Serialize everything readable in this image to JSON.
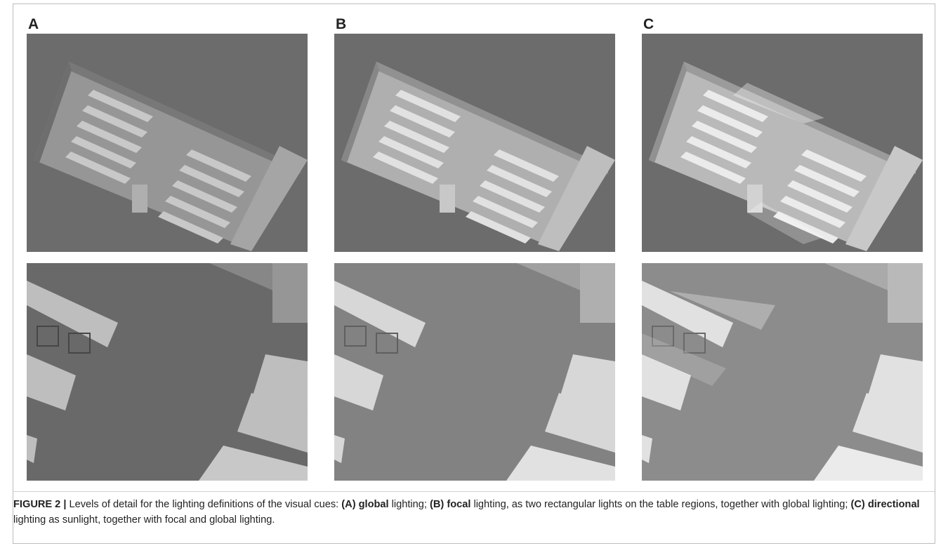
{
  "figure": {
    "panels": [
      {
        "label": "A"
      },
      {
        "label": "B"
      },
      {
        "label": "C"
      }
    ],
    "caption": [
      {
        "text": "FIGURE 2 |",
        "bold": true
      },
      {
        "text": " Levels of detail for the lighting definitions of the visual cues: ",
        "bold": false
      },
      {
        "text": "(A) global",
        "bold": true
      },
      {
        "text": " lighting; ",
        "bold": false
      },
      {
        "text": "(B) focal",
        "bold": true
      },
      {
        "text": " lighting, as two rectangular lights on the table regions, together with global lighting; ",
        "bold": false
      },
      {
        "text": "(C) directional",
        "bold": true
      },
      {
        "text": " lighting as sunlight, together with focal and global lighting.",
        "bold": false
      }
    ]
  }
}
